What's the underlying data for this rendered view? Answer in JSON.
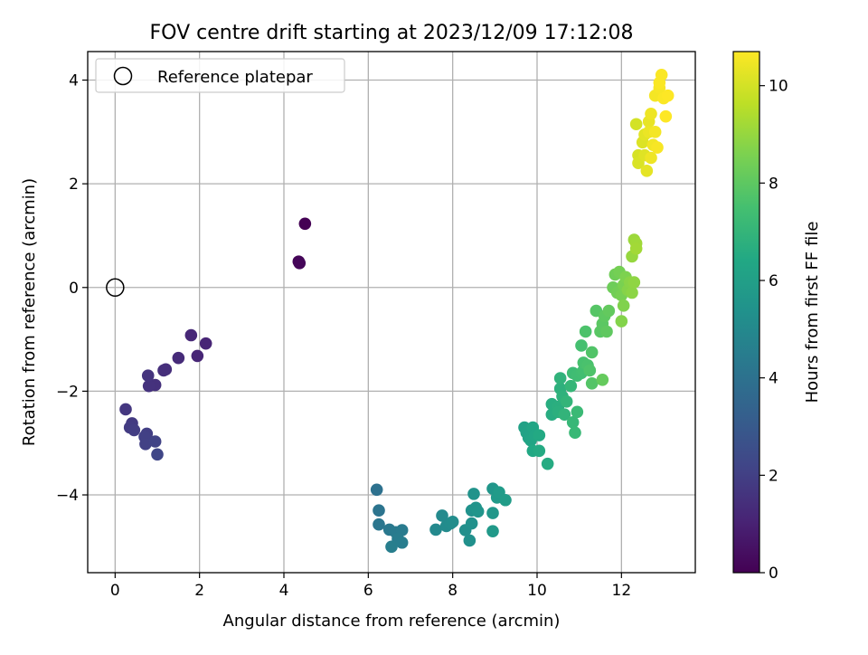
{
  "chart_data": {
    "type": "scatter",
    "title": "FOV centre drift starting at 2023/12/09 17:12:08",
    "xlabel": "Angular distance from reference (arcmin)",
    "ylabel": "Rotation from reference (arcmin)",
    "xlim": [
      -0.65,
      13.75
    ],
    "ylim": [
      -5.5,
      4.55
    ],
    "xticks": [
      0,
      2,
      4,
      6,
      8,
      10,
      12
    ],
    "yticks": [
      -4,
      -2,
      0,
      2,
      4
    ],
    "xtick_labels": [
      "0",
      "2",
      "4",
      "6",
      "8",
      "10",
      "12"
    ],
    "ytick_labels": [
      "−4",
      "−2",
      "0",
      "2",
      "4"
    ],
    "grid": true,
    "legend": {
      "placement": "upper-left",
      "entries": [
        "Reference platepar"
      ]
    },
    "reference_point": {
      "x": 0,
      "y": 0,
      "marker": "open-circle"
    },
    "colorbar": {
      "label": "Hours from first FF file",
      "colormap": "viridis",
      "range": [
        0,
        10.7
      ],
      "ticks": [
        0,
        2,
        4,
        6,
        8,
        10
      ],
      "tick_labels": [
        "0",
        "2",
        "4",
        "6",
        "8",
        "10"
      ]
    },
    "series": [
      {
        "points": [
          [
            4.5,
            1.23,
            0.0
          ],
          [
            4.35,
            0.5,
            0.1
          ],
          [
            4.37,
            0.47,
            0.15
          ],
          [
            2.15,
            -1.08,
            1.1
          ],
          [
            1.95,
            -1.32,
            1.15
          ],
          [
            1.8,
            -0.92,
            1.2
          ],
          [
            1.5,
            -1.36,
            1.3
          ],
          [
            1.2,
            -1.58,
            1.4
          ],
          [
            1.15,
            -1.6,
            1.45
          ],
          [
            0.95,
            -1.88,
            1.5
          ],
          [
            0.8,
            -1.9,
            1.55
          ],
          [
            0.78,
            -1.7,
            1.6
          ],
          [
            0.25,
            -2.35,
            1.7
          ],
          [
            0.4,
            -2.62,
            1.8
          ],
          [
            0.35,
            -2.7,
            1.85
          ],
          [
            0.45,
            -2.75,
            1.9
          ],
          [
            0.75,
            -2.82,
            1.95
          ],
          [
            0.7,
            -2.88,
            2.0
          ],
          [
            0.72,
            -3.02,
            2.05
          ],
          [
            0.95,
            -2.97,
            2.1
          ],
          [
            1.0,
            -3.22,
            2.2
          ],
          [
            6.2,
            -3.9,
            4.0
          ],
          [
            6.25,
            -4.3,
            4.1
          ],
          [
            6.25,
            -4.57,
            4.2
          ],
          [
            6.5,
            -4.67,
            4.3
          ],
          [
            6.65,
            -4.72,
            4.35
          ],
          [
            6.8,
            -4.68,
            4.4
          ],
          [
            6.7,
            -4.85,
            4.45
          ],
          [
            6.8,
            -4.92,
            4.5
          ],
          [
            6.55,
            -5.0,
            4.55
          ],
          [
            7.6,
            -4.67,
            5.0
          ],
          [
            7.75,
            -4.4,
            5.05
          ],
          [
            7.85,
            -4.6,
            5.1
          ],
          [
            7.95,
            -4.55,
            5.15
          ],
          [
            8.0,
            -4.52,
            5.2
          ],
          [
            8.3,
            -4.68,
            5.25
          ],
          [
            8.4,
            -4.88,
            5.3
          ],
          [
            8.45,
            -4.55,
            5.35
          ],
          [
            8.45,
            -4.3,
            5.4
          ],
          [
            8.5,
            -3.98,
            5.45
          ],
          [
            8.55,
            -4.25,
            5.5
          ],
          [
            8.6,
            -4.32,
            5.55
          ],
          [
            8.95,
            -3.88,
            5.6
          ],
          [
            8.95,
            -4.35,
            5.65
          ],
          [
            8.95,
            -4.7,
            5.7
          ],
          [
            9.05,
            -4.05,
            5.75
          ],
          [
            9.1,
            -3.95,
            5.8
          ],
          [
            9.25,
            -4.1,
            5.85
          ],
          [
            9.7,
            -2.7,
            6.1
          ],
          [
            9.75,
            -2.8,
            6.15
          ],
          [
            9.8,
            -2.9,
            6.2
          ],
          [
            9.85,
            -2.95,
            6.25
          ],
          [
            9.9,
            -2.7,
            6.3
          ],
          [
            9.95,
            -2.85,
            6.35
          ],
          [
            9.9,
            -3.15,
            6.4
          ],
          [
            10.05,
            -2.85,
            6.45
          ],
          [
            10.05,
            -3.15,
            6.5
          ],
          [
            10.25,
            -3.4,
            6.55
          ],
          [
            10.35,
            -2.45,
            6.6
          ],
          [
            10.35,
            -2.25,
            6.65
          ],
          [
            10.5,
            -2.3,
            6.7
          ],
          [
            10.5,
            -2.4,
            6.75
          ],
          [
            10.55,
            -1.95,
            6.8
          ],
          [
            10.6,
            -2.1,
            6.85
          ],
          [
            10.55,
            -1.75,
            6.9
          ],
          [
            10.65,
            -2.45,
            6.95
          ],
          [
            10.7,
            -2.2,
            7.0
          ],
          [
            10.8,
            -1.9,
            7.05
          ],
          [
            10.85,
            -2.6,
            7.1
          ],
          [
            10.9,
            -2.8,
            7.15
          ],
          [
            10.95,
            -2.4,
            7.2
          ],
          [
            10.85,
            -1.65,
            7.3
          ],
          [
            10.95,
            -1.7,
            7.35
          ],
          [
            11.05,
            -1.65,
            7.4
          ],
          [
            11.1,
            -1.6,
            7.45
          ],
          [
            11.05,
            -1.12,
            7.5
          ],
          [
            11.1,
            -1.45,
            7.55
          ],
          [
            11.2,
            -1.5,
            7.6
          ],
          [
            11.15,
            -0.85,
            7.65
          ],
          [
            11.25,
            -1.6,
            7.7
          ],
          [
            11.3,
            -1.25,
            7.75
          ],
          [
            11.3,
            -1.85,
            7.8
          ],
          [
            11.4,
            -0.45,
            7.85
          ],
          [
            11.5,
            -0.85,
            7.9
          ],
          [
            11.55,
            -0.7,
            7.95
          ],
          [
            11.6,
            -0.55,
            8.0
          ],
          [
            11.65,
            -0.85,
            8.05
          ],
          [
            11.7,
            -0.45,
            8.1
          ],
          [
            11.55,
            -1.78,
            8.15
          ],
          [
            11.8,
            0.0,
            8.3
          ],
          [
            11.85,
            0.25,
            8.35
          ],
          [
            11.9,
            -0.1,
            8.4
          ],
          [
            11.95,
            0.3,
            8.45
          ],
          [
            12.0,
            -0.15,
            8.5
          ],
          [
            12.05,
            0.05,
            8.55
          ],
          [
            12.1,
            0.2,
            8.6
          ],
          [
            12.05,
            -0.35,
            8.65
          ],
          [
            12.0,
            -0.65,
            8.7
          ],
          [
            12.15,
            -0.05,
            8.75
          ],
          [
            12.2,
            0.1,
            8.8
          ],
          [
            12.25,
            -0.1,
            8.85
          ],
          [
            12.3,
            0.1,
            8.9
          ],
          [
            12.25,
            0.6,
            9.0
          ],
          [
            12.3,
            0.92,
            9.1
          ],
          [
            12.35,
            0.85,
            9.15
          ],
          [
            12.35,
            0.75,
            9.2
          ],
          [
            12.35,
            3.15,
            10.0
          ],
          [
            12.4,
            2.55,
            10.05
          ],
          [
            12.4,
            2.4,
            10.1
          ],
          [
            12.5,
            2.8,
            10.15
          ],
          [
            12.55,
            2.55,
            10.2
          ],
          [
            12.55,
            2.95,
            10.25
          ],
          [
            12.6,
            2.25,
            10.3
          ],
          [
            12.65,
            3.2,
            10.35
          ],
          [
            12.65,
            3.0,
            10.4
          ],
          [
            12.7,
            3.35,
            10.45
          ],
          [
            12.75,
            2.75,
            10.5
          ],
          [
            12.7,
            2.5,
            10.45
          ],
          [
            12.8,
            3.0,
            10.55
          ],
          [
            12.8,
            3.7,
            10.55
          ],
          [
            12.85,
            2.7,
            10.6
          ],
          [
            12.9,
            3.85,
            10.6
          ],
          [
            12.95,
            4.1,
            10.65
          ],
          [
            12.9,
            3.95,
            10.65
          ],
          [
            13.0,
            3.65,
            10.65
          ],
          [
            13.05,
            3.3,
            10.7
          ],
          [
            13.1,
            3.7,
            10.7
          ]
        ]
      }
    ]
  }
}
